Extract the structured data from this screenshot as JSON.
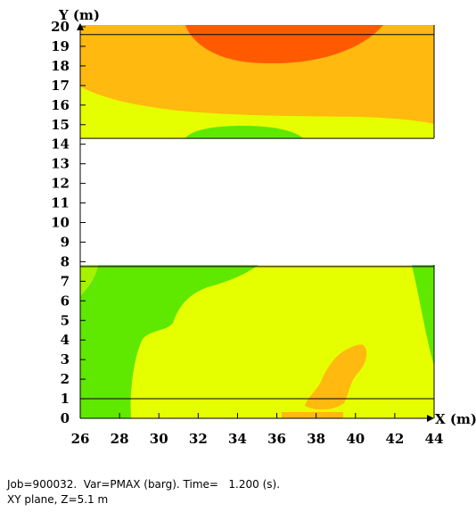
{
  "chart_data": {
    "type": "heatmap",
    "xlabel": "X (m)",
    "ylabel": "Y (m)",
    "xlim": [
      26,
      44
    ],
    "ylim": [
      0,
      20
    ],
    "x_ticks": [
      26,
      28,
      30,
      32,
      34,
      36,
      38,
      40,
      42,
      44
    ],
    "y_ticks": [
      0,
      1,
      2,
      3,
      4,
      5,
      6,
      7,
      8,
      9,
      10,
      11,
      12,
      13,
      14,
      15,
      16,
      17,
      18,
      19,
      20
    ],
    "grid": false,
    "regions": [
      {
        "y_range": [
          14.3,
          20
        ],
        "base_level": "yellow-orange"
      },
      {
        "y_range": [
          0,
          7.75
        ],
        "base_level": "yellow"
      }
    ],
    "blank_band_y": [
      7.75,
      14.3
    ],
    "horizontal_lines_y": [
      19.6,
      14.3,
      7.75,
      1.0
    ],
    "contour_colors": {
      "green": "#5fe800",
      "yellow_green": "#a6f200",
      "yellow": "#e6ff00",
      "yellow_orange": "#ffb90f",
      "orange": "#ff8c00",
      "red_orange": "#ff5a00"
    }
  },
  "caption": {
    "line1": "Job=900032.  Var=PMAX (barg). Time=   1.200 (s).",
    "line2": "XY plane, Z=5.1 m"
  }
}
